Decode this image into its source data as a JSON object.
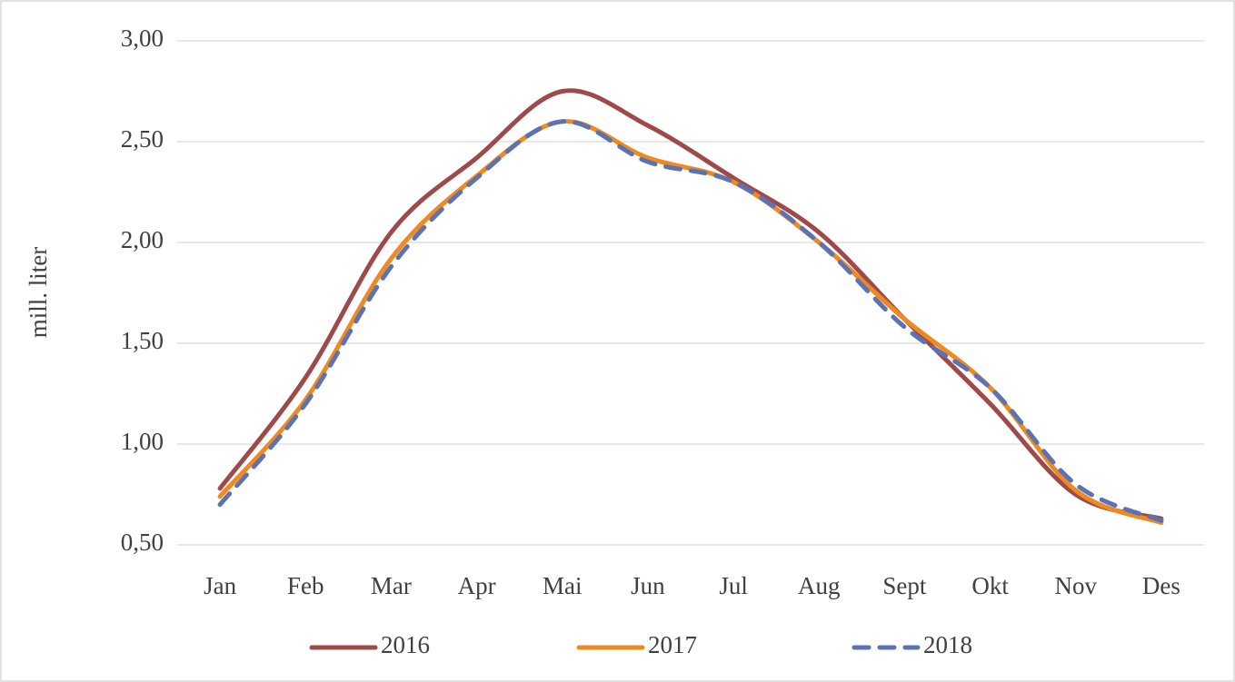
{
  "chart_data": {
    "type": "line",
    "y_label": "mill. liter",
    "categories": [
      "Jan",
      "Feb",
      "Mar",
      "Apr",
      "Mai",
      "Jun",
      "Jul",
      "Aug",
      "Sept",
      "Okt",
      "Nov",
      "Des"
    ],
    "series": [
      {
        "name": "2016",
        "color": "#9e4a4a",
        "dash": false,
        "values": [
          0.78,
          1.33,
          2.05,
          2.42,
          2.75,
          2.58,
          2.32,
          2.05,
          1.62,
          1.2,
          0.75,
          0.63
        ]
      },
      {
        "name": "2017",
        "color": "#ee8a1f",
        "dash": false,
        "values": [
          0.74,
          1.22,
          1.92,
          2.33,
          2.6,
          2.42,
          2.3,
          2.0,
          1.62,
          1.28,
          0.77,
          0.61
        ]
      },
      {
        "name": "2018",
        "color": "#5b72b5",
        "dash": true,
        "values": [
          0.7,
          1.2,
          1.88,
          2.32,
          2.6,
          2.4,
          2.3,
          2.0,
          1.58,
          1.28,
          0.8,
          0.62
        ]
      }
    ],
    "ylim": [
      0.5,
      3.0
    ],
    "yticks": [
      {
        "value": 0.5,
        "label": "0,50"
      },
      {
        "value": 1.0,
        "label": "1,00"
      },
      {
        "value": 1.5,
        "label": "1,50"
      },
      {
        "value": 2.0,
        "label": "2,00"
      },
      {
        "value": 2.5,
        "label": "2,50"
      },
      {
        "value": 3.0,
        "label": "3,00"
      }
    ],
    "grid": true,
    "smooth": true,
    "legend": "bottom"
  }
}
